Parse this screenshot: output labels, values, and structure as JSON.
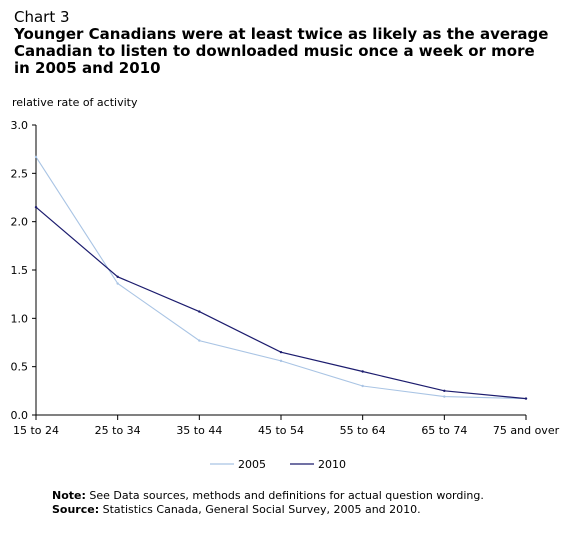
{
  "header": {
    "chart_label": "Chart 3",
    "title": "Younger Canadians were at least twice as likely as the average Canadian to listen to downloaded music once a week or more in 2005 and 2010"
  },
  "notes": {
    "note_label": "Note:",
    "note_text": "See Data sources, methods and definitions for actual question wording.",
    "source_label": "Source:",
    "source_text": "Statistics Canada, General Social Survey, 2005 and 2010."
  },
  "colors": {
    "series_2005": "#a9c4e4",
    "series_2010": "#1c1c6e",
    "axis": "#000000",
    "grid": "#e6e6e6"
  },
  "chart_data": {
    "type": "line",
    "title": "Younger Canadians were at least twice as likely as the average Canadian to listen to downloaded music once a week or more in 2005 and 2010",
    "ylabel": "relative rate of activity",
    "xlabel": "",
    "categories": [
      "15 to 24",
      "25 to 34",
      "35 to 44",
      "45 to 54",
      "55 to 64",
      "65 to 74",
      "75 and over"
    ],
    "ylim": [
      0,
      3.0
    ],
    "yticks": [
      "0.0",
      "0.5",
      "1.0",
      "1.5",
      "2.0",
      "2.5",
      "3.0"
    ],
    "grid": false,
    "legend_position": "bottom",
    "series": [
      {
        "name": "2005",
        "values": [
          2.67,
          1.36,
          0.77,
          0.56,
          0.3,
          0.19,
          0.17
        ]
      },
      {
        "name": "2010",
        "values": [
          2.15,
          1.43,
          1.07,
          0.65,
          0.45,
          0.25,
          0.17
        ]
      }
    ]
  }
}
